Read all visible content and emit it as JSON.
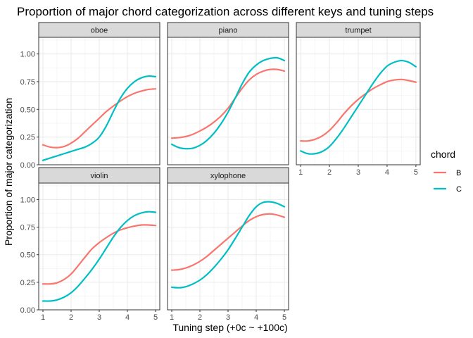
{
  "chart_data": {
    "type": "line",
    "title": "Proportion of major chord categorization across different keys and tuning steps",
    "xlabel": "Tuning step (+0c ~ +100c)",
    "ylabel": "Proportion of major categorization",
    "xlim": [
      0.85,
      5.15
    ],
    "ylim": [
      0,
      1.15
    ],
    "x_ticks": [
      1,
      2,
      3,
      4,
      5
    ],
    "y_ticks": [
      0,
      0.25,
      0.5,
      0.75,
      1.0
    ],
    "y_tick_labels": [
      "0.00",
      "0.25",
      "0.50",
      "0.75",
      "1.00"
    ],
    "grid": true,
    "legend": {
      "title": "chord",
      "position": "right",
      "entries": [
        {
          "name": "B",
          "color": "#F8766D"
        },
        {
          "name": "C",
          "color": "#00BFC4"
        }
      ]
    },
    "facets": [
      {
        "label": "oboe",
        "series": [
          {
            "name": "B",
            "x": [
              1,
              1.25,
              1.5,
              1.75,
              2,
              2.25,
              2.5,
              2.75,
              3,
              3.25,
              3.5,
              3.75,
              4,
              4.25,
              4.5,
              4.75,
              5
            ],
            "y": [
              0.18,
              0.16,
              0.155,
              0.165,
              0.195,
              0.24,
              0.3,
              0.36,
              0.42,
              0.48,
              0.53,
              0.575,
              0.615,
              0.645,
              0.665,
              0.68,
              0.685
            ]
          },
          {
            "name": "C",
            "x": [
              1,
              1.25,
              1.5,
              1.75,
              2,
              2.25,
              2.5,
              2.75,
              3,
              3.25,
              3.5,
              3.75,
              4,
              4.25,
              4.5,
              4.75,
              5
            ],
            "y": [
              0.04,
              0.06,
              0.08,
              0.1,
              0.12,
              0.14,
              0.16,
              0.195,
              0.25,
              0.35,
              0.48,
              0.6,
              0.69,
              0.75,
              0.785,
              0.8,
              0.795
            ]
          }
        ]
      },
      {
        "label": "piano",
        "series": [
          {
            "name": "B",
            "x": [
              1,
              1.25,
              1.5,
              1.75,
              2,
              2.25,
              2.5,
              2.75,
              3,
              3.25,
              3.5,
              3.75,
              4,
              4.25,
              4.5,
              4.75,
              5
            ],
            "y": [
              0.24,
              0.245,
              0.255,
              0.275,
              0.305,
              0.34,
              0.385,
              0.44,
              0.51,
              0.6,
              0.69,
              0.765,
              0.815,
              0.845,
              0.86,
              0.86,
              0.845
            ]
          },
          {
            "name": "C",
            "x": [
              1,
              1.25,
              1.5,
              1.75,
              2,
              2.25,
              2.5,
              2.75,
              3,
              3.25,
              3.5,
              3.75,
              4,
              4.25,
              4.5,
              4.75,
              5
            ],
            "y": [
              0.185,
              0.155,
              0.145,
              0.15,
              0.175,
              0.22,
              0.285,
              0.37,
              0.475,
              0.6,
              0.73,
              0.835,
              0.9,
              0.94,
              0.96,
              0.965,
              0.94
            ]
          }
        ]
      },
      {
        "label": "trumpet",
        "series": [
          {
            "name": "B",
            "x": [
              1,
              1.25,
              1.5,
              1.75,
              2,
              2.25,
              2.5,
              2.75,
              3,
              3.25,
              3.5,
              3.75,
              4,
              4.25,
              4.5,
              4.75,
              5
            ],
            "y": [
              0.215,
              0.215,
              0.23,
              0.26,
              0.31,
              0.38,
              0.46,
              0.53,
              0.59,
              0.64,
              0.685,
              0.72,
              0.75,
              0.765,
              0.77,
              0.76,
              0.745
            ]
          },
          {
            "name": "C",
            "x": [
              1,
              1.25,
              1.5,
              1.75,
              2,
              2.25,
              2.5,
              2.75,
              3,
              3.25,
              3.5,
              3.75,
              4,
              4.25,
              4.5,
              4.75,
              5
            ],
            "y": [
              0.125,
              0.1,
              0.1,
              0.12,
              0.165,
              0.24,
              0.33,
              0.43,
              0.53,
              0.63,
              0.73,
              0.82,
              0.89,
              0.925,
              0.94,
              0.925,
              0.885
            ]
          }
        ]
      },
      {
        "label": "violin",
        "series": [
          {
            "name": "B",
            "x": [
              1,
              1.25,
              1.5,
              1.75,
              2,
              2.25,
              2.5,
              2.75,
              3,
              3.25,
              3.5,
              3.75,
              4,
              4.25,
              4.5,
              4.75,
              5
            ],
            "y": [
              0.235,
              0.235,
              0.245,
              0.275,
              0.325,
              0.4,
              0.48,
              0.555,
              0.61,
              0.655,
              0.695,
              0.725,
              0.745,
              0.76,
              0.77,
              0.77,
              0.765
            ]
          },
          {
            "name": "C",
            "x": [
              1,
              1.25,
              1.5,
              1.75,
              2,
              2.25,
              2.5,
              2.75,
              3,
              3.25,
              3.5,
              3.75,
              4,
              4.25,
              4.5,
              4.75,
              5
            ],
            "y": [
              0.08,
              0.08,
              0.09,
              0.115,
              0.155,
              0.215,
              0.29,
              0.37,
              0.46,
              0.56,
              0.66,
              0.745,
              0.81,
              0.855,
              0.88,
              0.89,
              0.885
            ]
          }
        ]
      },
      {
        "label": "xylophone",
        "series": [
          {
            "name": "B",
            "x": [
              1,
              1.25,
              1.5,
              1.75,
              2,
              2.25,
              2.5,
              2.75,
              3,
              3.25,
              3.5,
              3.75,
              4,
              4.25,
              4.5,
              4.75,
              5
            ],
            "y": [
              0.36,
              0.365,
              0.38,
              0.405,
              0.44,
              0.485,
              0.54,
              0.595,
              0.65,
              0.705,
              0.76,
              0.81,
              0.845,
              0.865,
              0.87,
              0.86,
              0.84
            ]
          },
          {
            "name": "C",
            "x": [
              1,
              1.25,
              1.5,
              1.75,
              2,
              2.25,
              2.5,
              2.75,
              3,
              3.25,
              3.5,
              3.75,
              4,
              4.25,
              4.5,
              4.75,
              5
            ],
            "y": [
              0.205,
              0.2,
              0.21,
              0.235,
              0.27,
              0.32,
              0.385,
              0.46,
              0.545,
              0.645,
              0.75,
              0.855,
              0.935,
              0.975,
              0.98,
              0.965,
              0.935
            ]
          }
        ]
      }
    ]
  }
}
